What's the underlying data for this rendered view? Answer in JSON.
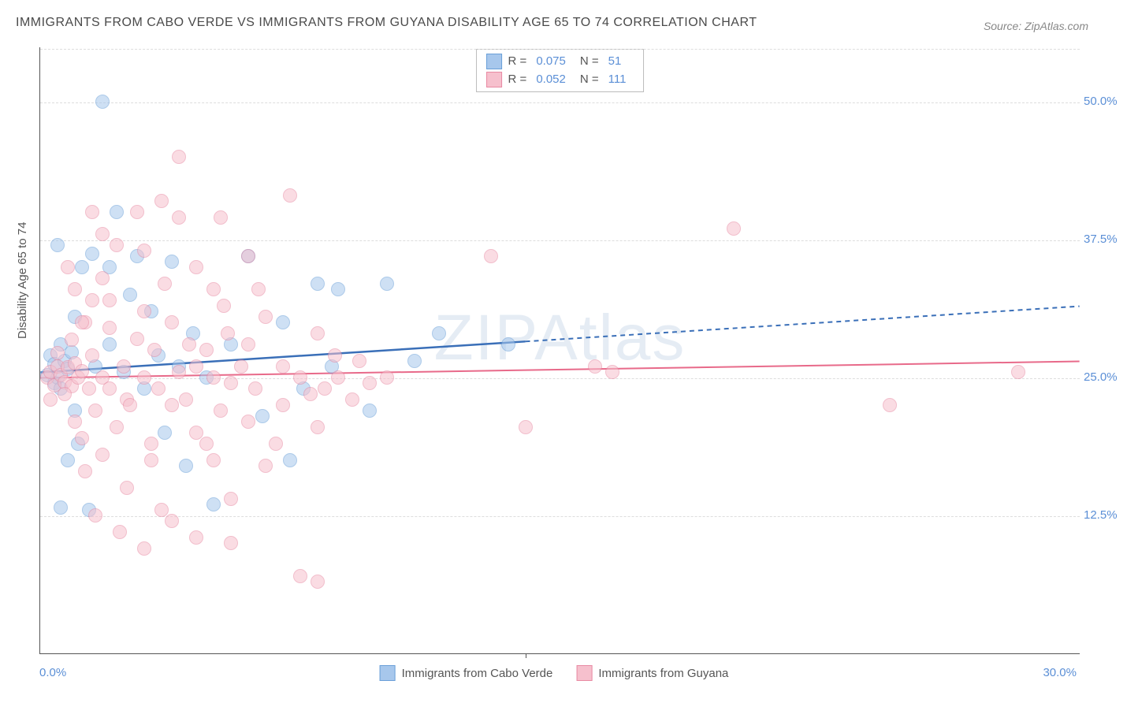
{
  "title": "IMMIGRANTS FROM CABO VERDE VS IMMIGRANTS FROM GUYANA DISABILITY AGE 65 TO 74 CORRELATION CHART",
  "source": "Source: ZipAtlas.com",
  "ylabel": "Disability Age 65 to 74",
  "watermark": "ZIPAtlas",
  "chart": {
    "type": "scatter",
    "xlim": [
      0,
      30
    ],
    "ylim": [
      0,
      55
    ],
    "y_ticks": [
      12.5,
      25.0,
      37.5,
      50.0
    ],
    "y_tick_labels": [
      "12.5%",
      "25.0%",
      "37.5%",
      "50.0%"
    ],
    "x_tick_left": "0.0%",
    "x_tick_right": "30.0%",
    "background_color": "#ffffff",
    "grid_color": "#dddddd",
    "grid_style": "dashed",
    "point_radius": 9,
    "point_opacity": 0.55,
    "series": [
      {
        "name": "Immigrants from Cabo Verde",
        "fill": "#a7c7ec",
        "stroke": "#6a9fd8",
        "trend_color": "#3a6fb8",
        "trend_width": 2.5,
        "R_label": "R =",
        "R": "0.075",
        "N_label": "N =",
        "N": "51",
        "trend": {
          "x1": 0,
          "y1": 25.5,
          "x2": 14,
          "y2": 28.3,
          "solid_until_x": 14,
          "dash_to_x": 30,
          "dash_end_y": 31.5
        },
        "points": [
          [
            0.2,
            25.2
          ],
          [
            0.3,
            27.0
          ],
          [
            0.4,
            24.5
          ],
          [
            0.4,
            26.2
          ],
          [
            0.5,
            25.0
          ],
          [
            0.6,
            28.0
          ],
          [
            0.6,
            24.0
          ],
          [
            0.7,
            26.5
          ],
          [
            0.8,
            25.8
          ],
          [
            0.9,
            27.3
          ],
          [
            0.5,
            37.0
          ],
          [
            1.0,
            30.5
          ],
          [
            1.0,
            22.0
          ],
          [
            1.1,
            19.0
          ],
          [
            1.2,
            35.0
          ],
          [
            0.8,
            17.5
          ],
          [
            1.4,
            13.0
          ],
          [
            1.5,
            36.2
          ],
          [
            1.6,
            26.0
          ],
          [
            1.8,
            50.0
          ],
          [
            2.0,
            35.0
          ],
          [
            2.0,
            28.0
          ],
          [
            2.2,
            40.0
          ],
          [
            2.4,
            25.5
          ],
          [
            2.6,
            32.5
          ],
          [
            2.8,
            36.0
          ],
          [
            3.0,
            24.0
          ],
          [
            3.2,
            31.0
          ],
          [
            3.4,
            27.0
          ],
          [
            3.6,
            20.0
          ],
          [
            3.8,
            35.5
          ],
          [
            4.0,
            26.0
          ],
          [
            4.2,
            17.0
          ],
          [
            4.4,
            29.0
          ],
          [
            4.8,
            25.0
          ],
          [
            5.0,
            13.5
          ],
          [
            5.5,
            28.0
          ],
          [
            6.0,
            36.0
          ],
          [
            6.4,
            21.5
          ],
          [
            7.0,
            30.0
          ],
          [
            7.2,
            17.5
          ],
          [
            7.6,
            24.0
          ],
          [
            8.0,
            33.5
          ],
          [
            8.4,
            26.0
          ],
          [
            8.6,
            33.0
          ],
          [
            10.0,
            33.5
          ],
          [
            10.8,
            26.5
          ],
          [
            11.5,
            29.0
          ],
          [
            13.5,
            28.0
          ],
          [
            9.5,
            22.0
          ],
          [
            0.6,
            13.2
          ]
        ]
      },
      {
        "name": "Immigrants from Guyana",
        "fill": "#f6c0cd",
        "stroke": "#e88aa3",
        "trend_color": "#e86a8a",
        "trend_width": 2,
        "R_label": "R =",
        "R": "0.052",
        "N_label": "N =",
        "N": "111",
        "trend": {
          "x1": 0,
          "y1": 25.0,
          "x2": 30,
          "y2": 26.5,
          "solid_until_x": 30
        },
        "points": [
          [
            0.2,
            25.0
          ],
          [
            0.3,
            25.5
          ],
          [
            0.4,
            24.3
          ],
          [
            0.5,
            26.0
          ],
          [
            0.6,
            25.2
          ],
          [
            0.7,
            24.6
          ],
          [
            0.8,
            25.9
          ],
          [
            0.9,
            24.2
          ],
          [
            1.0,
            26.3
          ],
          [
            1.1,
            25.0
          ],
          [
            0.3,
            23.0
          ],
          [
            0.5,
            27.2
          ],
          [
            0.7,
            23.5
          ],
          [
            0.9,
            28.4
          ],
          [
            1.0,
            21.0
          ],
          [
            1.2,
            25.6
          ],
          [
            1.2,
            19.5
          ],
          [
            1.3,
            30.0
          ],
          [
            1.4,
            24.0
          ],
          [
            1.5,
            27.0
          ],
          [
            1.5,
            32.0
          ],
          [
            1.6,
            22.0
          ],
          [
            1.8,
            25.0
          ],
          [
            1.8,
            34.0
          ],
          [
            1.8,
            18.0
          ],
          [
            2.0,
            29.5
          ],
          [
            2.0,
            24.0
          ],
          [
            2.2,
            37.0
          ],
          [
            2.2,
            20.5
          ],
          [
            2.4,
            26.0
          ],
          [
            2.5,
            23.0
          ],
          [
            2.5,
            15.0
          ],
          [
            2.8,
            28.5
          ],
          [
            2.8,
            40.0
          ],
          [
            3.0,
            25.0
          ],
          [
            3.0,
            31.0
          ],
          [
            3.2,
            19.0
          ],
          [
            3.2,
            17.5
          ],
          [
            3.4,
            24.0
          ],
          [
            3.5,
            41.0
          ],
          [
            3.5,
            13.0
          ],
          [
            3.8,
            30.0
          ],
          [
            3.8,
            22.5
          ],
          [
            4.0,
            25.5
          ],
          [
            4.0,
            39.5
          ],
          [
            4.0,
            45.0
          ],
          [
            4.2,
            23.0
          ],
          [
            4.3,
            28.0
          ],
          [
            4.5,
            26.0
          ],
          [
            4.5,
            20.0
          ],
          [
            4.5,
            10.5
          ],
          [
            4.8,
            27.5
          ],
          [
            5.0,
            25.0
          ],
          [
            5.0,
            33.0
          ],
          [
            5.0,
            17.5
          ],
          [
            5.2,
            22.0
          ],
          [
            5.4,
            29.0
          ],
          [
            5.5,
            24.5
          ],
          [
            5.5,
            14.0
          ],
          [
            5.8,
            26.0
          ],
          [
            6.0,
            28.0
          ],
          [
            6.0,
            36.0
          ],
          [
            6.0,
            21.0
          ],
          [
            6.2,
            24.0
          ],
          [
            6.5,
            30.5
          ],
          [
            6.5,
            17.0
          ],
          [
            7.0,
            26.0
          ],
          [
            7.0,
            22.5
          ],
          [
            7.2,
            41.5
          ],
          [
            7.5,
            25.0
          ],
          [
            7.5,
            7.0
          ],
          [
            7.8,
            23.5
          ],
          [
            8.0,
            29.0
          ],
          [
            8.0,
            20.5
          ],
          [
            8.0,
            6.5
          ],
          [
            8.2,
            24.0
          ],
          [
            8.5,
            27.0
          ],
          [
            8.6,
            25.0
          ],
          [
            9.0,
            23.0
          ],
          [
            9.2,
            26.5
          ],
          [
            9.5,
            24.5
          ],
          [
            10.0,
            25.0
          ],
          [
            13.0,
            36.0
          ],
          [
            14.0,
            20.5
          ],
          [
            16.0,
            26.0
          ],
          [
            16.5,
            25.5
          ],
          [
            20.0,
            38.5
          ],
          [
            24.5,
            22.5
          ],
          [
            28.2,
            25.5
          ],
          [
            5.5,
            10.0
          ],
          [
            2.3,
            11.0
          ],
          [
            4.5,
            35.0
          ],
          [
            3.6,
            33.5
          ],
          [
            5.2,
            39.5
          ],
          [
            1.0,
            33.0
          ],
          [
            1.5,
            40.0
          ],
          [
            2.0,
            32.0
          ],
          [
            3.0,
            36.5
          ],
          [
            1.2,
            30.0
          ],
          [
            0.8,
            35.0
          ],
          [
            1.8,
            38.0
          ],
          [
            1.3,
            16.5
          ],
          [
            3.0,
            9.5
          ],
          [
            3.8,
            12.0
          ],
          [
            1.6,
            12.5
          ],
          [
            4.8,
            19.0
          ],
          [
            5.3,
            31.5
          ],
          [
            6.3,
            33.0
          ],
          [
            6.8,
            19.0
          ],
          [
            2.6,
            22.5
          ],
          [
            3.3,
            27.5
          ]
        ]
      }
    ]
  },
  "bottom_legend": [
    "Immigrants from Cabo Verde",
    "Immigrants from Guyana"
  ]
}
